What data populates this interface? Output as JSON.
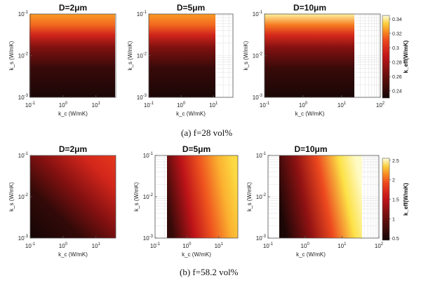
{
  "chart_data": [
    {
      "type": "heatmap",
      "title": "D=2μm",
      "xlabel": "k_c  (W/mK)",
      "ylabel": "k_s (W/mK)",
      "xscale": "log",
      "yscale": "log",
      "xlim": [
        0.1,
        40
      ],
      "ylim": [
        0.001,
        0.1
      ],
      "x_ticks": [
        0.1,
        1,
        10
      ],
      "x_ticklabels": [
        "10^-1",
        "10^0",
        "10^1"
      ],
      "y_ticks": [
        0.001,
        0.01,
        0.1
      ],
      "y_ticklabels": [
        "10^-3",
        "10^-2",
        "10^-1"
      ],
      "pattern": "varies with k_s only; brightest at top",
      "value_range": [
        0.24,
        0.32
      ]
    },
    {
      "type": "heatmap",
      "title": "D=5μm",
      "xlabel": "k_c (W/mK)",
      "ylabel": "k_s (W/mK)",
      "xscale": "log",
      "yscale": "log",
      "xlim": [
        0.1,
        40
      ],
      "ylim": [
        0.001,
        0.1
      ],
      "x_ticks": [
        0.1,
        1,
        10
      ],
      "x_ticklabels": [
        "10^-1",
        "10^0",
        "10^1"
      ],
      "y_ticks": [
        0.001,
        0.01,
        0.1
      ],
      "y_ticklabels": [
        "10^-3",
        "10^-2",
        "10^-1"
      ],
      "pattern": "varies with k_s only",
      "value_range": [
        0.24,
        0.32
      ]
    },
    {
      "type": "heatmap",
      "title": "D=10μm",
      "xlabel": "k_c (W/mK)",
      "ylabel": "k_s (W/mK)",
      "xscale": "log",
      "yscale": "log",
      "xlim": [
        0.1,
        100
      ],
      "ylim": [
        0.001,
        0.1
      ],
      "x_ticks": [
        0.1,
        1,
        10,
        100
      ],
      "x_ticklabels": [
        "10^-1",
        "10^0",
        "10^1",
        "10^2"
      ],
      "y_ticks": [
        0.001,
        0.01,
        0.1
      ],
      "y_ticklabels": [
        "10^-3",
        "10^-2",
        "10^-1"
      ],
      "pattern": "varies with k_s only; pale yellow at top",
      "value_range": [
        0.24,
        0.345
      ],
      "colorbar": {
        "label": "k_eff(W/mK)",
        "min": 0.23,
        "max": 0.345,
        "ticks": [
          0.24,
          0.26,
          0.28,
          0.3,
          0.32,
          0.34
        ],
        "ticklabels": [
          "0.24",
          "0.26",
          "0.28",
          "0.3",
          "0.32",
          "0.34"
        ]
      }
    },
    {
      "type": "heatmap",
      "title": "D=2μm",
      "xlabel": "k_c  (W/mK)",
      "ylabel": "k_s (W/mK)",
      "xscale": "log",
      "yscale": "log",
      "xlim": [
        0.1,
        40
      ],
      "ylim": [
        0.001,
        0.1
      ],
      "x_ticks": [
        0.1,
        1,
        10
      ],
      "x_ticklabels": [
        "10^-1",
        "10^0",
        "10^1"
      ],
      "y_ticks": [
        0.001,
        0.01,
        0.1
      ],
      "y_ticklabels": [
        "10^-3",
        "10^-2",
        "10^-1"
      ],
      "pattern": "diagonal gradient; increases with both k_c and k_s",
      "value_range": [
        0.5,
        1.9
      ]
    },
    {
      "type": "heatmap",
      "title": "D=5μm",
      "xlabel": "k_c (W/mK)",
      "ylabel": "k_s (W/mK)",
      "xscale": "log",
      "yscale": "log",
      "xlim": [
        0.1,
        40
      ],
      "ylim": [
        0.001,
        0.1
      ],
      "x_ticks": [
        0.1,
        1,
        10
      ],
      "x_ticklabels": [
        "10^-1",
        "10^0",
        "10^1"
      ],
      "y_ticks": [
        0.001,
        0.01,
        0.1
      ],
      "y_ticklabels": [
        "10^-3",
        "10^-2",
        "10^-1"
      ],
      "pattern": "increases mainly with k_c",
      "value_range": [
        0.5,
        2.2
      ]
    },
    {
      "type": "heatmap",
      "title": "D=10μm",
      "xlabel": "k_c (W/mK)",
      "ylabel": "k_s (W/mK)",
      "xscale": "log",
      "yscale": "log",
      "xlim": [
        0.1,
        100
      ],
      "ylim": [
        0.001,
        0.1
      ],
      "x_ticks": [
        0.1,
        1,
        10,
        100
      ],
      "x_ticklabels": [
        "10^-1",
        "10^0",
        "10^1",
        "10^2"
      ],
      "y_ticks": [
        0.001,
        0.01,
        0.1
      ],
      "y_ticklabels": [
        "10^-3",
        "10^-2",
        "10^-1"
      ],
      "pattern": "increases mainly with k_c; saturates to pale yellow",
      "value_range": [
        0.5,
        2.5
      ],
      "colorbar": {
        "label": "k_eff(W/mK)",
        "min": 0.45,
        "max": 2.55,
        "ticks": [
          0.5,
          1,
          1.5,
          2,
          2.5
        ],
        "ticklabels": [
          "0.5",
          "1",
          "1.5",
          "2",
          "2.5"
        ]
      }
    }
  ],
  "captions": {
    "a": "(a)  f=28 vol%",
    "b": "(b)  f=58.2 vol%"
  }
}
